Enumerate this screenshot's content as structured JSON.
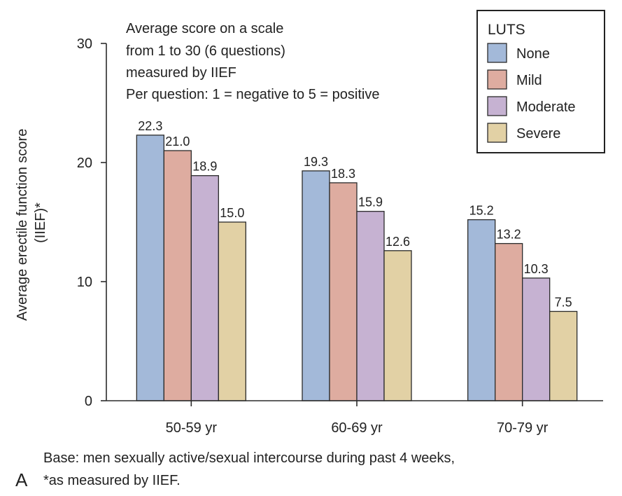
{
  "chart_data": {
    "type": "bar",
    "categories": [
      "50-59 yr",
      "60-69 yr",
      "70-79 yr"
    ],
    "series": [
      {
        "name": "None",
        "color": "#a3b9d9",
        "values": [
          22.3,
          19.3,
          15.2
        ]
      },
      {
        "name": "Mild",
        "color": "#deaca0",
        "values": [
          21.0,
          18.3,
          13.2
        ]
      },
      {
        "name": "Moderate",
        "color": "#c6b2d2",
        "values": [
          18.9,
          15.9,
          10.3
        ]
      },
      {
        "name": "Severe",
        "color": "#e2d1a5",
        "values": [
          15.0,
          12.6,
          7.5
        ]
      }
    ],
    "data_labels": [
      [
        "22.3",
        "19.3",
        "15.2"
      ],
      [
        "21.0",
        "18.3",
        "13.2"
      ],
      [
        "18.9",
        "15.9",
        "10.3"
      ],
      [
        "15.0",
        "12.6",
        "7.5"
      ]
    ],
    "ylabel_lines": [
      "Average erectile function score",
      "(IIEF)*"
    ],
    "ylim": [
      0,
      30
    ],
    "yticks": [
      0,
      10,
      20,
      30
    ],
    "legend_title": "LUTS",
    "legend_position": "top-right",
    "grid": false,
    "note_lines": [
      "Average score on a scale",
      "from 1 to 30 (6 questions)",
      "measured by IIEF",
      "Per question: 1 = negative to 5 = positive"
    ],
    "footnote_lines": [
      "Base: men sexually active/sexual intercourse during past 4 weeks,",
      "*as measured by IIEF."
    ],
    "panel_label": "A"
  }
}
